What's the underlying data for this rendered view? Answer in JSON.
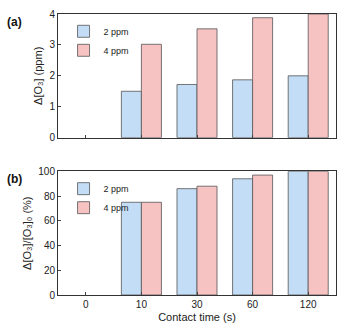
{
  "chart_data": [
    {
      "type": "bar",
      "annotations": [
        "(a)"
      ],
      "y_label": "Δ[O₃] (ppm)",
      "categories": [
        "0",
        "10",
        "30",
        "60",
        "120"
      ],
      "series": [
        {
          "name": "2 ppm",
          "color": "#c3ddf6",
          "values": [
            null,
            1.5,
            1.72,
            1.87,
            2.0
          ]
        },
        {
          "name": "4 ppm",
          "color": "#f7c2c2",
          "values": [
            null,
            3.02,
            3.52,
            3.88,
            4.0
          ]
        }
      ],
      "ylim": [
        0,
        4
      ],
      "yticks": [
        0,
        1,
        2,
        3,
        4
      ],
      "legend": "upper left",
      "tick_labels": "y"
    },
    {
      "type": "bar",
      "annotations": [
        "(b)"
      ],
      "x_label": "Contact time (s)",
      "y_label": "Δ[O₃]/[O₃]₀ (%)",
      "categories": [
        "0",
        "10",
        "30",
        "60",
        "120"
      ],
      "series": [
        {
          "name": "2 ppm",
          "color": "#c3ddf6",
          "values": [
            null,
            75,
            86,
            94,
            100
          ]
        },
        {
          "name": "4 ppm",
          "color": "#f7c2c2",
          "values": [
            null,
            75,
            88,
            97,
            100
          ]
        }
      ],
      "ylim": [
        0,
        100
      ],
      "yticks": [
        0,
        20,
        40,
        60,
        80,
        100
      ],
      "legend": "upper left"
    }
  ]
}
